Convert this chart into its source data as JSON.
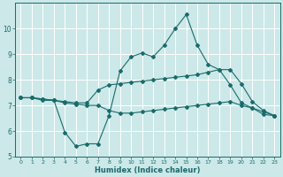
{
  "title": "",
  "xlabel": "Humidex (Indice chaleur)",
  "bg_color": "#cce8e8",
  "line_color": "#1a6b6b",
  "grid_color": "#b0d8d8",
  "xlim": [
    -0.5,
    23.5
  ],
  "ylim": [
    5,
    11
  ],
  "xticks": [
    0,
    1,
    2,
    3,
    4,
    5,
    6,
    7,
    8,
    9,
    10,
    11,
    12,
    13,
    14,
    15,
    16,
    17,
    18,
    19,
    20,
    21,
    22,
    23
  ],
  "yticks": [
    5,
    6,
    7,
    8,
    9,
    10
  ],
  "line1_x": [
    0,
    1,
    2,
    3,
    4,
    5,
    6,
    7,
    8,
    9,
    10,
    11,
    12,
    13,
    14,
    15,
    16,
    17,
    18,
    19,
    20,
    21,
    22,
    23
  ],
  "line1_y": [
    7.3,
    7.3,
    7.2,
    7.2,
    5.95,
    5.4,
    5.5,
    5.5,
    6.6,
    8.35,
    8.9,
    9.05,
    8.9,
    9.35,
    10.0,
    10.55,
    9.35,
    8.6,
    8.4,
    7.8,
    7.1,
    6.9,
    6.65,
    6.6
  ],
  "line2_x": [
    0,
    1,
    2,
    3,
    4,
    5,
    6,
    7,
    8,
    9,
    10,
    11,
    12,
    13,
    14,
    15,
    16,
    17,
    18,
    19,
    20,
    21,
    22,
    23
  ],
  "line2_y": [
    7.3,
    7.3,
    7.25,
    7.2,
    7.15,
    7.1,
    7.1,
    7.6,
    7.8,
    7.85,
    7.9,
    7.95,
    8.0,
    8.05,
    8.1,
    8.15,
    8.2,
    8.3,
    8.4,
    8.4,
    7.85,
    7.15,
    6.8,
    6.6
  ],
  "line3_x": [
    0,
    1,
    2,
    3,
    4,
    5,
    6,
    7,
    8,
    9,
    10,
    11,
    12,
    13,
    14,
    15,
    16,
    17,
    18,
    19,
    20,
    21,
    22,
    23
  ],
  "line3_y": [
    7.3,
    7.3,
    7.25,
    7.2,
    7.1,
    7.05,
    7.0,
    7.0,
    6.8,
    6.7,
    6.7,
    6.75,
    6.8,
    6.85,
    6.9,
    6.95,
    7.0,
    7.05,
    7.1,
    7.15,
    7.0,
    6.9,
    6.75,
    6.6
  ]
}
